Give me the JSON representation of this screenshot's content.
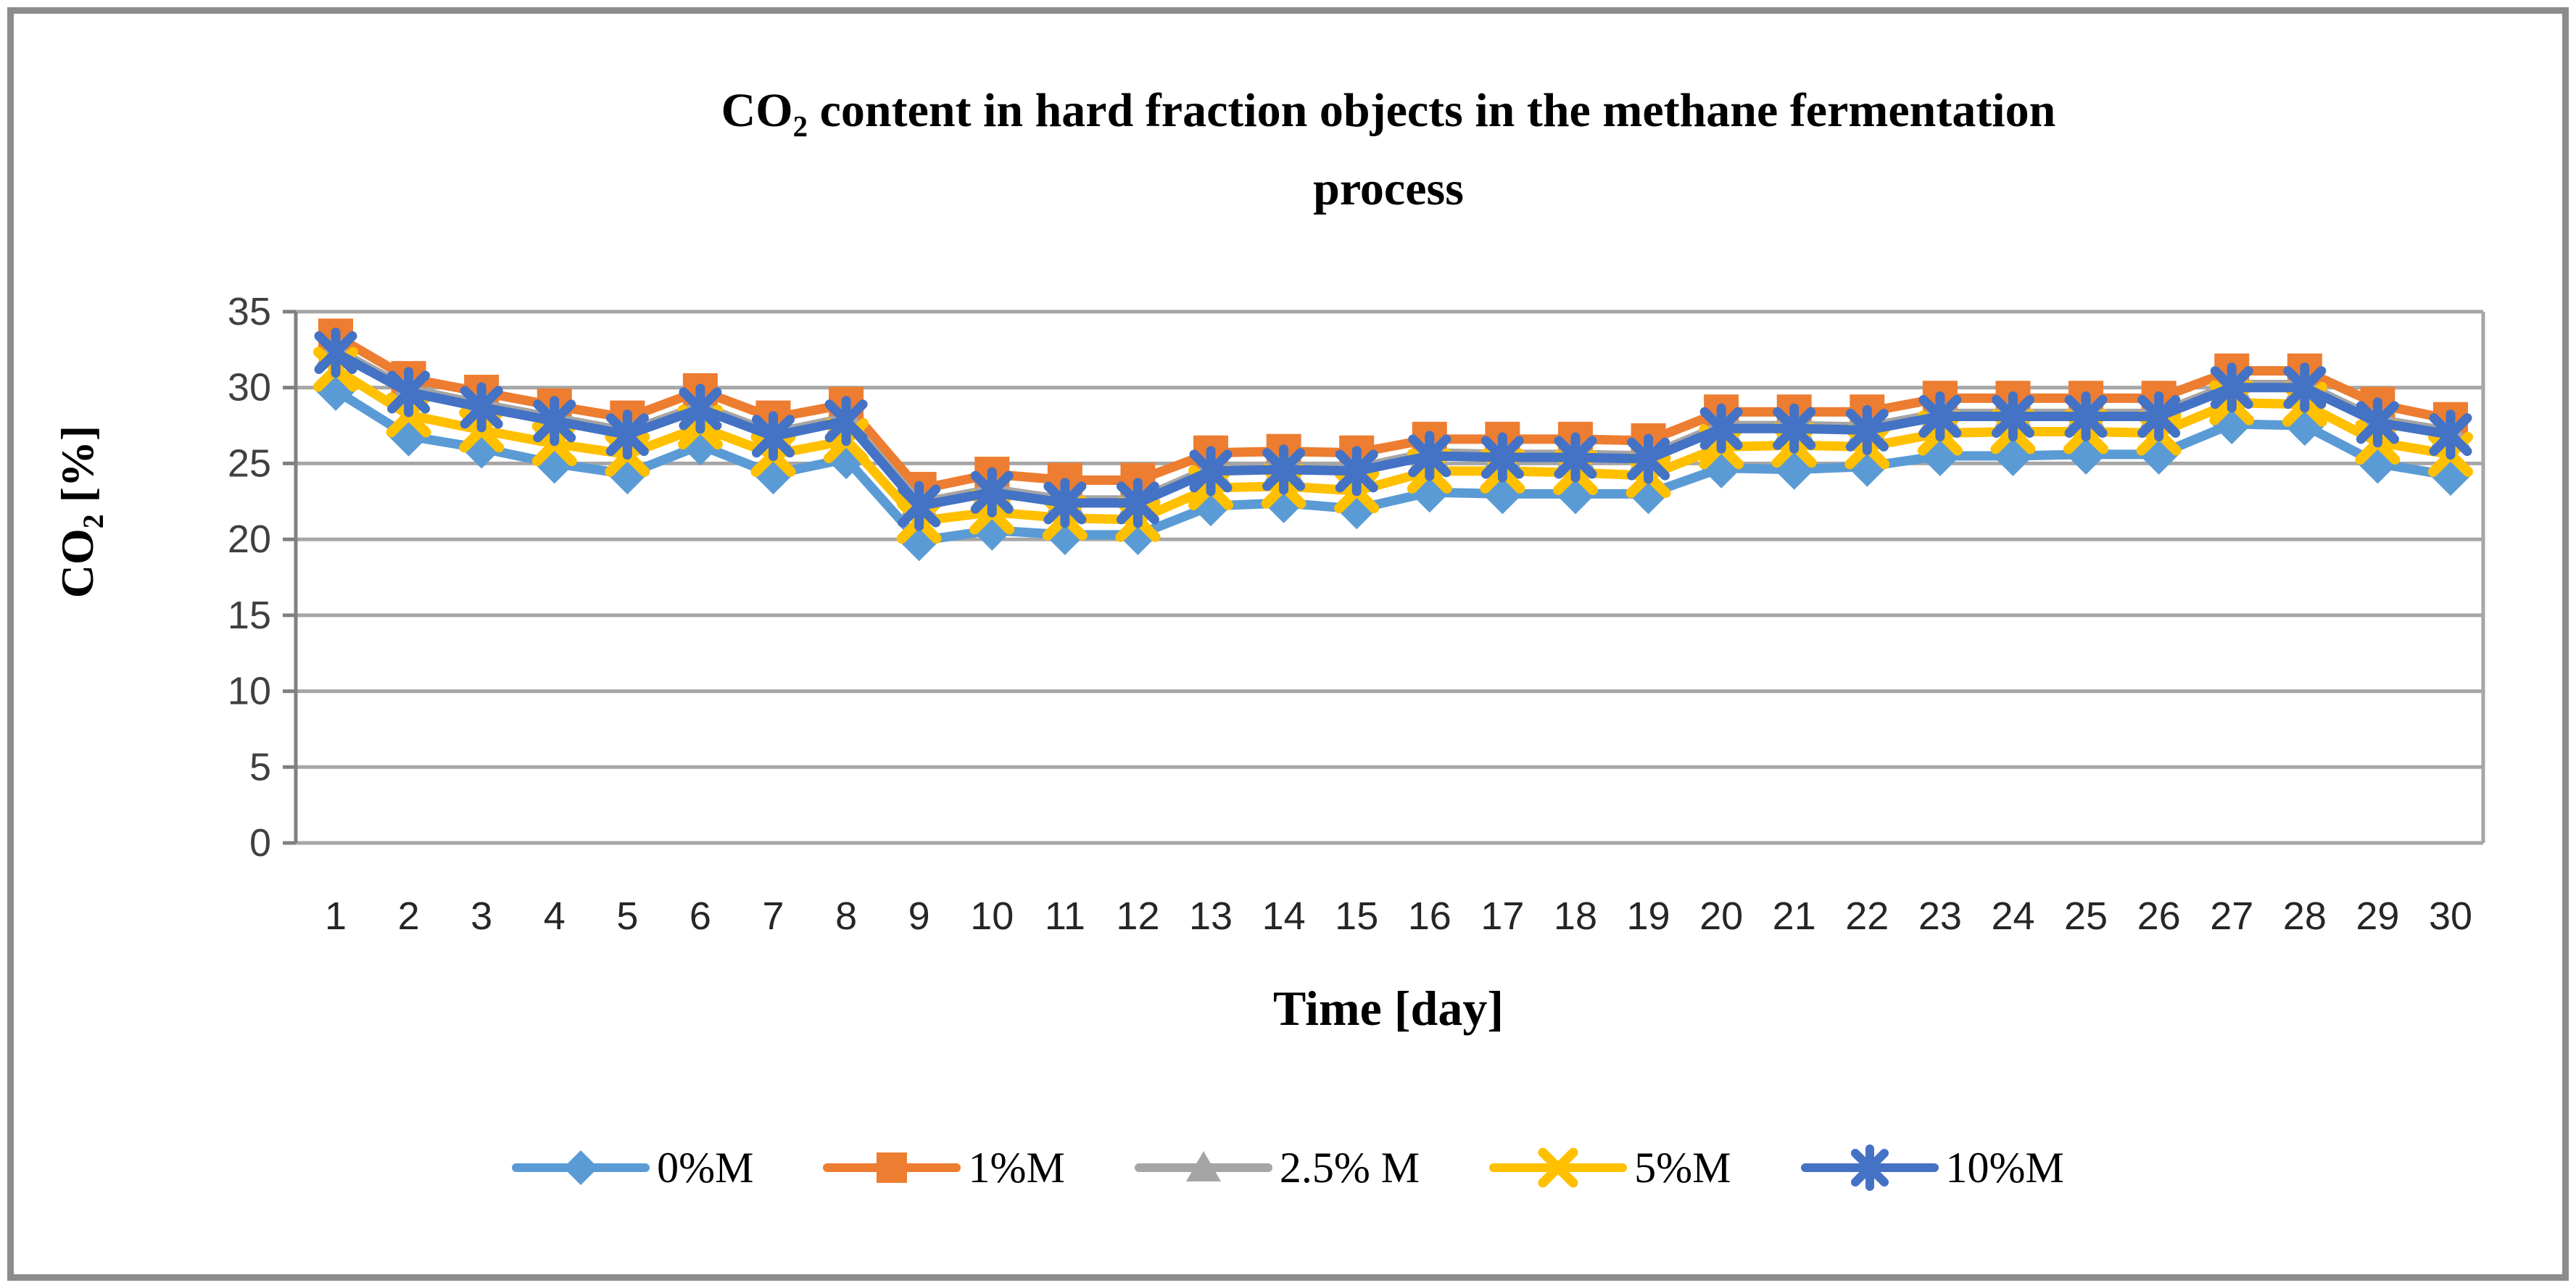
{
  "page": {
    "background": "#ffffff",
    "frame_color": "#8c8c8c"
  },
  "title": {
    "prefix": "CO",
    "subscript": "2",
    "line1_rest": " content in hard fraction objects in the methane fermentation",
    "line2": "process"
  },
  "y_axis": {
    "title_prefix": "CO",
    "title_subscript": "2",
    "title_rest": " [%]",
    "tick_values": [
      0,
      5,
      10,
      15,
      20,
      25,
      30,
      35
    ],
    "color_grid": "#a6a6a6",
    "color_axis": "#808080",
    "color_text": "#404040"
  },
  "x_axis": {
    "title": "Time [day]",
    "tick_labels": [
      "1",
      "2",
      "3",
      "4",
      "5",
      "6",
      "7",
      "8",
      "9",
      "10",
      "11",
      "12",
      "13",
      "14",
      "15",
      "16",
      "17",
      "18",
      "19",
      "20",
      "21",
      "22",
      "23",
      "24",
      "25",
      "26",
      "27",
      "28",
      "29",
      "30"
    ],
    "color_text": "#262626"
  },
  "legend": {
    "position": "bottom",
    "labels": [
      "0%M",
      "1%M",
      "2.5% M",
      "5%M",
      "10%M"
    ]
  },
  "chart_data": {
    "type": "line",
    "title": "CO2 content in hard fraction objects in the methane fermentation process",
    "xlabel": "Time [day]",
    "ylabel": "CO2 [%]",
    "ylim": [
      0,
      35
    ],
    "ytick_step": 5,
    "grid": "horizontal",
    "legend_position": "bottom",
    "x": [
      1,
      2,
      3,
      4,
      5,
      6,
      7,
      8,
      9,
      10,
      11,
      12,
      13,
      14,
      15,
      16,
      17,
      18,
      19,
      20,
      21,
      22,
      23,
      24,
      25,
      26,
      27,
      28,
      29,
      30
    ],
    "series": [
      {
        "name": "0%M",
        "color": "#5B9BD5",
        "marker": "diamond",
        "values": [
          29.8,
          26.8,
          26.0,
          25.0,
          24.3,
          26.2,
          24.3,
          25.3,
          19.9,
          20.6,
          20.3,
          20.3,
          22.2,
          22.4,
          22.0,
          23.1,
          23.0,
          23.0,
          23.0,
          24.7,
          24.6,
          24.8,
          25.5,
          25.5,
          25.6,
          25.6,
          27.6,
          27.5,
          25.0,
          24.2
        ]
      },
      {
        "name": "1%M",
        "color": "#ED7D31",
        "marker": "square",
        "values": [
          33.4,
          30.6,
          29.7,
          28.8,
          28.0,
          29.8,
          28.0,
          28.9,
          23.3,
          24.3,
          23.9,
          23.9,
          25.7,
          25.8,
          25.7,
          26.6,
          26.6,
          26.6,
          26.5,
          28.4,
          28.4,
          28.4,
          29.3,
          29.3,
          29.3,
          29.3,
          31.1,
          31.1,
          28.9,
          27.9
        ]
      },
      {
        "name": "2.5% M",
        "color": "#A5A5A5",
        "marker": "triangle",
        "values": [
          32.5,
          29.9,
          28.9,
          28.0,
          27.1,
          28.8,
          27.0,
          28.0,
          22.4,
          23.3,
          22.6,
          22.6,
          24.7,
          24.8,
          24.7,
          25.7,
          25.6,
          25.6,
          25.5,
          27.5,
          27.5,
          27.4,
          28.3,
          28.3,
          28.3,
          28.3,
          30.2,
          30.2,
          27.9,
          27.1
        ]
      },
      {
        "name": "5%M",
        "color": "#FFC000",
        "marker": "x",
        "values": [
          31.2,
          28.2,
          27.2,
          26.3,
          25.6,
          27.4,
          25.6,
          26.5,
          21.2,
          21.8,
          21.4,
          21.3,
          23.4,
          23.5,
          23.2,
          24.5,
          24.5,
          24.4,
          24.2,
          26.1,
          26.2,
          26.1,
          27.0,
          27.1,
          27.1,
          27.0,
          29.0,
          28.9,
          26.4,
          25.6
        ]
      },
      {
        "name": "10%M",
        "color": "#4472C4",
        "marker": "asterisk",
        "values": [
          32.3,
          29.7,
          28.7,
          27.8,
          26.9,
          28.6,
          26.8,
          27.8,
          22.2,
          23.1,
          22.4,
          22.4,
          24.5,
          24.6,
          24.5,
          25.5,
          25.4,
          25.4,
          25.3,
          27.3,
          27.3,
          27.2,
          28.1,
          28.1,
          28.1,
          28.1,
          30.0,
          30.0,
          27.7,
          26.9
        ]
      }
    ]
  }
}
